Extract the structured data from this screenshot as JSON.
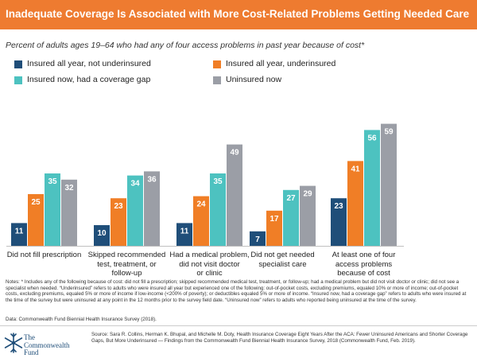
{
  "title": "Inadequate Coverage Is Associated with More Cost-Related Problems Getting Needed Care",
  "subtitle": "Percent of adults ages 19–64 who had any of four access problems in past year because of cost*",
  "colors": {
    "header_bg": "#ee7b30",
    "header_text": "#ffffff",
    "logo": "#1f4e79"
  },
  "chart_data": {
    "type": "bar",
    "title": "Inadequate Coverage Is Associated with More Cost-Related Problems Getting Needed Care",
    "subtitle": "Percent of adults ages 19–64 who had any of four access problems in past year because of cost*",
    "xlabel": "",
    "ylabel": "",
    "ylim": [
      0,
      65
    ],
    "grid": false,
    "legend_position": "top",
    "categories": [
      [
        "Did not fill prescription"
      ],
      [
        "Skipped recommended",
        "test, treatment, or",
        "follow-up"
      ],
      [
        "Had a medical problem,",
        "did not visit doctor",
        "or clinic"
      ],
      [
        "Did not get needed",
        "specialist care"
      ],
      [
        "At least one of four",
        "access problems",
        "because of cost"
      ]
    ],
    "series": [
      {
        "name": "Insured all year, not underinsured",
        "color": "#1f4e79",
        "label_color": "#ffffff",
        "values": [
          11,
          10,
          11,
          7,
          23
        ]
      },
      {
        "name": "Insured all year, underinsured",
        "color": "#f07e26",
        "label_color": "#ffffff",
        "values": [
          25,
          23,
          24,
          17,
          41
        ]
      },
      {
        "name": "Insured now, had a coverage gap",
        "color": "#4dc2c0",
        "label_color": "#ffffff",
        "values": [
          35,
          34,
          35,
          27,
          56
        ]
      },
      {
        "name": "Uninsured now",
        "color": "#9b9ea6",
        "label_color": "#ffffff",
        "values": [
          32,
          36,
          49,
          29,
          59
        ]
      }
    ]
  },
  "notes": "Notes: * Includes any of the following because of cost: did not fill a prescription; skipped recommended medical test, treatment, or follow-up; had a medical problem but did not visit doctor or clinic; did not see a specialist when needed. “Underinsured” refers to adults who were insured all year but experienced one of the following: out-of-pocket costs, excluding premiums, equaled 10% or more of income; out-of-pocket costs, excluding premiums, equaled 5% or more of income if low-income (<200% of poverty); or deductibles equaled 5% or more of income. “Insured now, had a coverage gap” refers to adults who were insured at the time of the survey but were uninsured at any point in the 12 months prior to the survey field date. “Uninsured now” refers to adults who reported being uninsured at the time of the survey.",
  "data_source": "Data: Commonwealth Fund Biennial Health Insurance Survey (2018).",
  "source": "Source: Sara R. Collins, Herman K. Bhupal, and Michelle M. Doty, Health Insurance Coverage Eight Years After the ACA: Fewer Uninsured Americans and Shorter Coverage Gaps, But More Underinsured — Findings from the Commonwealth Fund Biennial Health Insurance Survey, 2018 (Commonwealth Fund, Feb. 2019).",
  "logo": {
    "line1": "The",
    "line2": "Commonwealth",
    "line3": "Fund"
  }
}
